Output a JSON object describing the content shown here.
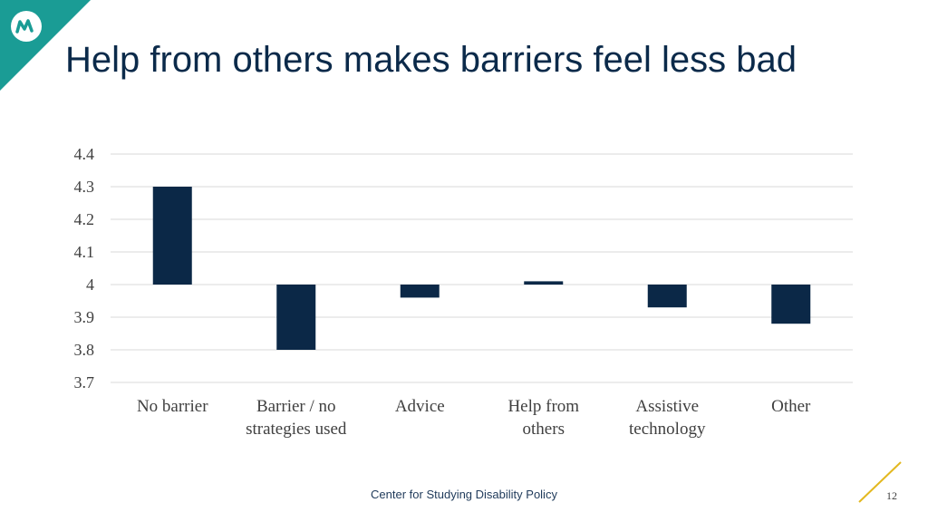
{
  "slide": {
    "title": "Help from others makes barriers feel less bad",
    "footer": "Center for Studying Disability Policy",
    "page_number": "12",
    "logo_icon": "mathematica-logo-icon"
  },
  "colors": {
    "bar": "#0b2847",
    "title": "#0b2a4a",
    "logo_bg": "#1a9c95",
    "accent": "#e3b81f",
    "grid": "#d9d9d9"
  },
  "chart_data": {
    "type": "bar",
    "title": "",
    "xlabel": "",
    "ylabel": "",
    "baseline": 4.0,
    "ylim": [
      3.7,
      4.4
    ],
    "yticks": [
      "4.4",
      "4.3",
      "4.2",
      "4.1",
      "4",
      "3.9",
      "3.8",
      "3.7"
    ],
    "ytick_values": [
      4.4,
      4.3,
      4.2,
      4.1,
      4.0,
      3.9,
      3.8,
      3.7
    ],
    "categories": [
      [
        "No barrier"
      ],
      [
        "Barrier / no",
        "strategies used"
      ],
      [
        "Advice"
      ],
      [
        "Help from",
        "others"
      ],
      [
        "Assistive",
        "technology"
      ],
      [
        "Other"
      ]
    ],
    "values": [
      4.3,
      3.8,
      3.96,
      4.01,
      3.93,
      3.88
    ],
    "grid": true,
    "legend": "none"
  }
}
